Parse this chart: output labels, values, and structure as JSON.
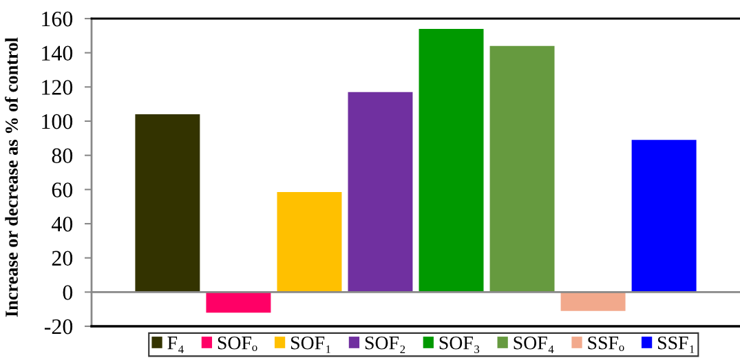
{
  "chart_data": {
    "type": "bar",
    "ylabel": "Increase or decrease as % of control",
    "categories": [
      null
    ],
    "series": [
      {
        "name": "F₄",
        "color": "#333300",
        "values": [
          104
        ]
      },
      {
        "name": "SOFₒ",
        "color": "#ff0066",
        "values": [
          -12
        ]
      },
      {
        "name": "SOF₁",
        "color": "#ffc000",
        "values": [
          58.5
        ]
      },
      {
        "name": "SOF₂",
        "color": "#7030a0",
        "values": [
          117
        ]
      },
      {
        "name": "SOF₃",
        "color": "#009900",
        "values": [
          154
        ]
      },
      {
        "name": "SOF₄",
        "color": "#669a3f",
        "values": [
          144
        ]
      },
      {
        "name": "SSFₒ",
        "color": "#f2a98c",
        "values": [
          -11
        ]
      },
      {
        "name": "SSF₁",
        "color": "#0000ff",
        "values": [
          89
        ]
      }
    ],
    "ylim": [
      -20,
      160
    ],
    "yticks": [
      -20,
      0,
      20,
      40,
      60,
      80,
      100,
      120,
      140,
      160
    ],
    "legend": "bottom"
  }
}
